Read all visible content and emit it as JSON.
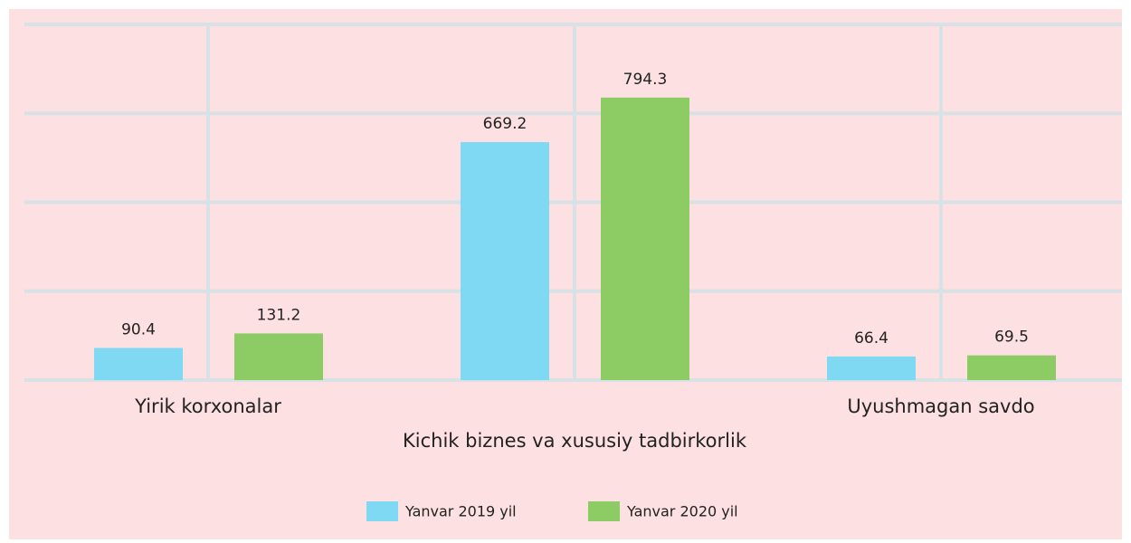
{
  "chart_data": {
    "type": "bar",
    "categories": [
      "Yirik korxonalar",
      "Kichik biznes va xususiy tadbirkorlik",
      "Uyushmagan savdo"
    ],
    "series": [
      {
        "name": "Yanvar 2019 yil",
        "color": "#80d9f2",
        "values": [
          90.4,
          669.2,
          66.4
        ]
      },
      {
        "name": "Yanvar 2020 yil",
        "color": "#8dcb65",
        "values": [
          131.2,
          794.3,
          69.5
        ]
      }
    ],
    "ylim": [
      0,
      1000
    ],
    "yticks": [
      0,
      250,
      500,
      750,
      1000
    ],
    "grid": true,
    "legend": "bottom"
  }
}
